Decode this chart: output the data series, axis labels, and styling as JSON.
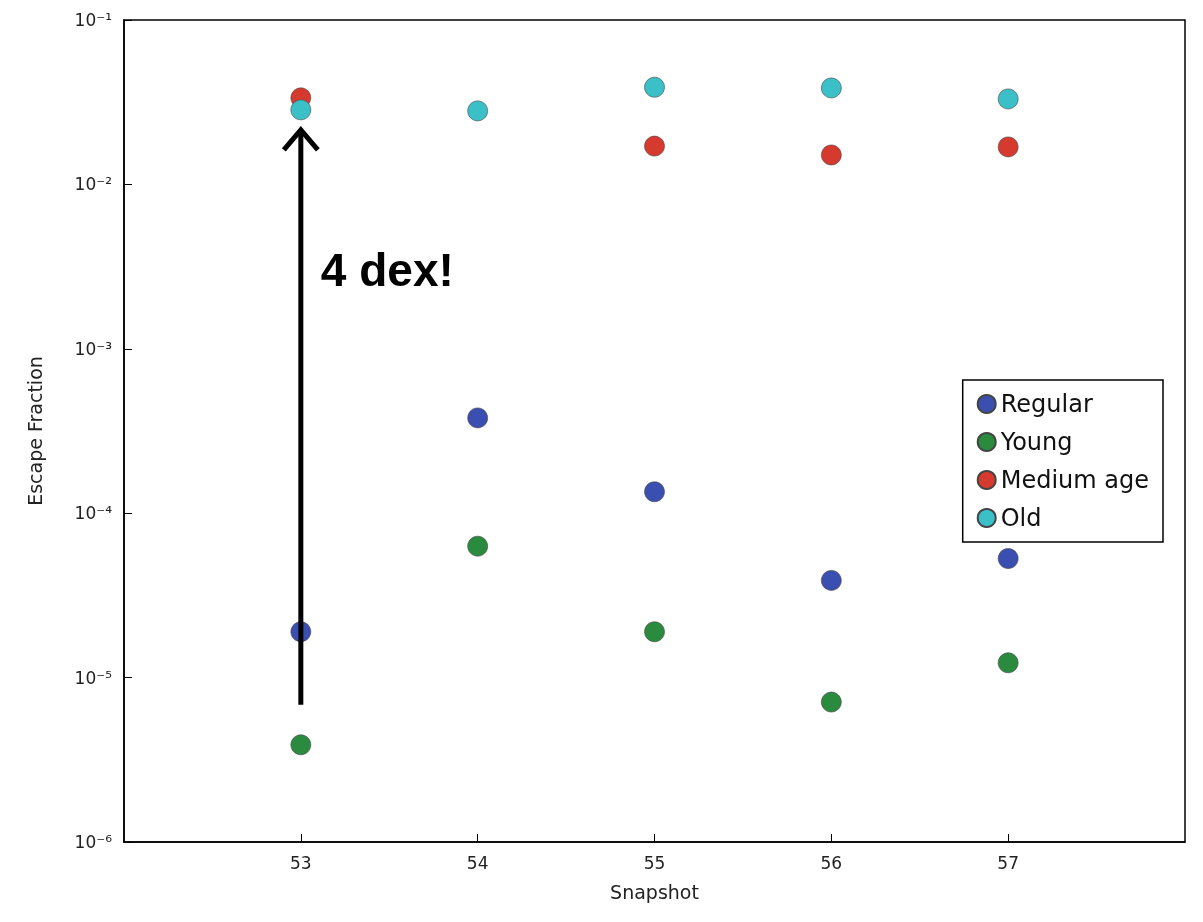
{
  "chart_data": {
    "type": "scatter",
    "xlabel": "Snapshot",
    "ylabel": "Escape Fraction",
    "log": "y",
    "x": [
      53,
      54,
      55,
      56,
      57
    ],
    "xlim": [
      52,
      58
    ],
    "xticks": [
      53,
      54,
      55,
      56,
      57
    ],
    "ylim": [
      1e-06,
      0.1
    ],
    "yticks": [
      {
        "value": 1e-06,
        "label": "10⁻⁶"
      },
      {
        "value": 1e-05,
        "label": "10⁻⁵"
      },
      {
        "value": 0.0001,
        "label": "10⁻⁴"
      },
      {
        "value": 0.001,
        "label": "10⁻³"
      },
      {
        "value": 0.01,
        "label": "10⁻²"
      },
      {
        "value": 0.1,
        "label": "10⁻¹"
      }
    ],
    "grid": false,
    "legend": "right",
    "marker": "circle",
    "series": [
      {
        "name": "Regular",
        "color": "#3a4fb0",
        "values": [
          1.9e-05,
          0.00038,
          0.000135,
          3.9e-05,
          5.3e-05
        ]
      },
      {
        "name": "Young",
        "color": "#2a8a3e",
        "values": [
          3.9e-06,
          6.3e-05,
          1.9e-05,
          7.1e-06,
          1.23e-05
        ]
      },
      {
        "name": "Medium age",
        "color": "#d63a2e",
        "values": [
          0.0336,
          null,
          0.0171,
          0.0151,
          0.0169
        ]
      },
      {
        "name": "Old",
        "color": "#3cc0c8",
        "values": [
          0.0284,
          0.028,
          0.039,
          0.0386,
          0.0331
        ]
      }
    ],
    "annotations": [
      "4 dex!"
    ]
  }
}
